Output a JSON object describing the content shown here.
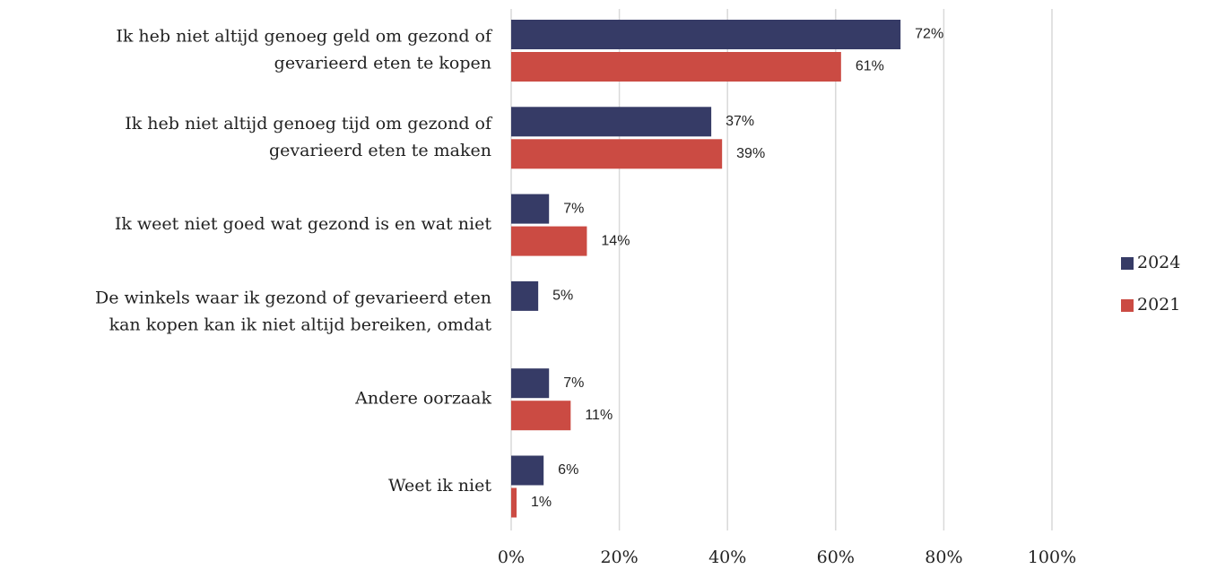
{
  "chart_data": {
    "type": "hbar",
    "categories": [
      [
        "Ik heb niet altijd genoeg geld om gezond of",
        "gevarieerd eten te kopen"
      ],
      [
        "Ik heb niet altijd genoeg tijd om gezond of",
        "gevarieerd eten te maken"
      ],
      [
        "Ik weet niet goed wat gezond is en wat niet"
      ],
      [
        "De winkels waar ik gezond of gevarieerd eten",
        "kan kopen kan ik niet altijd bereiken, omdat"
      ],
      [
        "Andere oorzaak"
      ],
      [
        "Weet ik niet"
      ]
    ],
    "series": [
      {
        "name": "2024",
        "color": "#363b66",
        "values": [
          72,
          37,
          7,
          5,
          7,
          6
        ],
        "value_labels": [
          "72%",
          "37%",
          "7%",
          "5%",
          "7%",
          "6%"
        ]
      },
      {
        "name": "2021",
        "color": "#cb4b43",
        "values": [
          61,
          39,
          14,
          null,
          11,
          1
        ],
        "value_labels": [
          "61%",
          "39%",
          "14%",
          null,
          "11%",
          "1%"
        ]
      }
    ],
    "xlim": [
      0,
      100
    ],
    "xticks": [
      {
        "value": 0,
        "label": "0%"
      },
      {
        "value": 20,
        "label": "20%"
      },
      {
        "value": 40,
        "label": "40%"
      },
      {
        "value": 60,
        "label": "60%"
      },
      {
        "value": 80,
        "label": "80%"
      },
      {
        "value": 100,
        "label": "100%"
      }
    ],
    "grid": true,
    "legend": "right"
  }
}
